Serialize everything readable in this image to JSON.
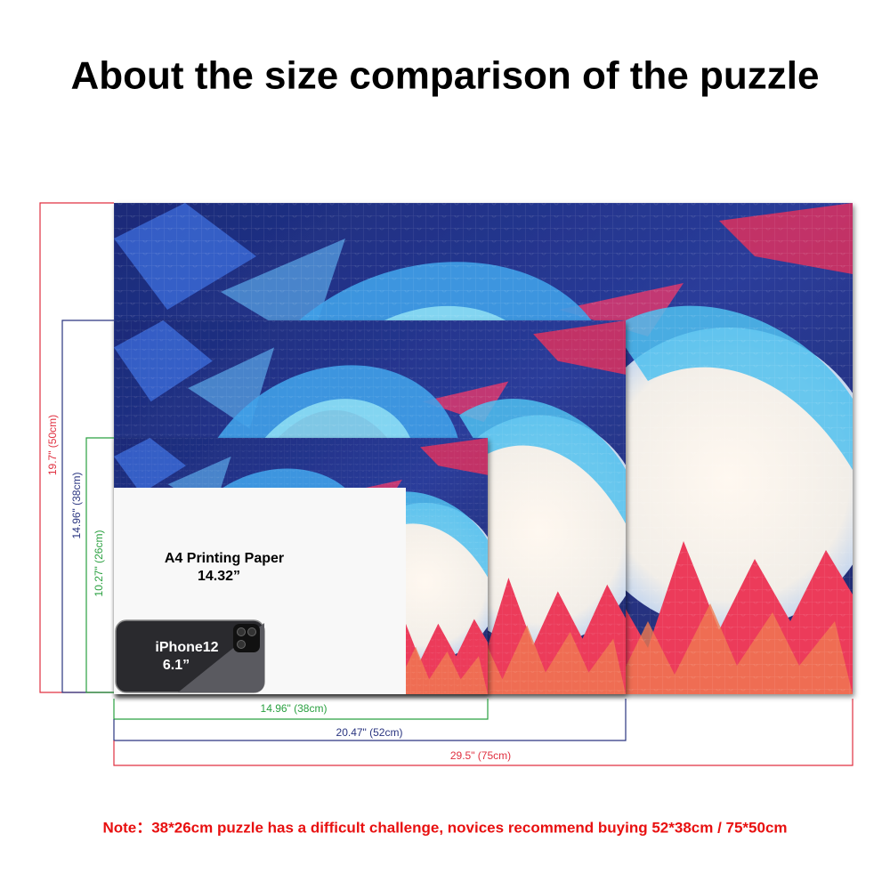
{
  "title": "About the size comparison of the puzzle",
  "height_labels": [
    "19.7\" (50cm)",
    "14.96\" (38cm)",
    "10.27\" (26cm)"
  ],
  "width_labels": [
    "14.96\" (38cm)",
    "20.47\" (52cm)",
    "29.5\" (75cm)"
  ],
  "paper": {
    "label": "A4 Printing Paper",
    "size": "14.32”"
  },
  "phone": {
    "model": "iPhone12",
    "size": "6.1”"
  },
  "note": "Note：38*26cm puzzle has a difficult challenge, novices recommend buying 52*38cm / 75*50cm"
}
